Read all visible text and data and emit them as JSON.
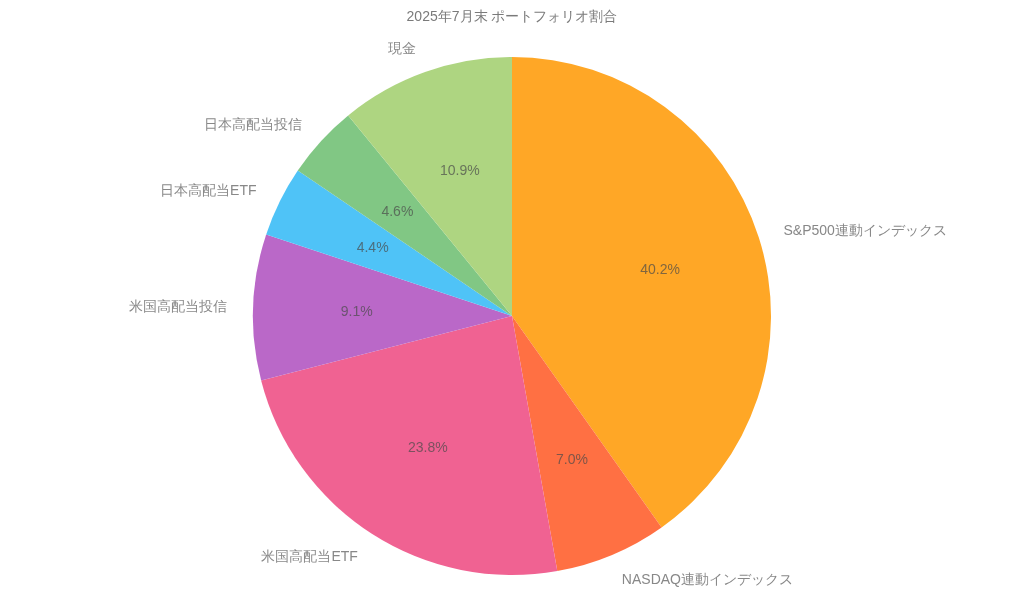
{
  "chart_data": {
    "type": "pie",
    "title": "2025年7月末 ポートフォリオ割合",
    "categories": [
      "S&P500連動インデックス",
      "NASDAQ連動インデックス",
      "米国高配当ETF",
      "米国高配当投信",
      "日本高配当ETF",
      "日本高配当投信",
      "現金"
    ],
    "values": [
      40.2,
      7.0,
      23.8,
      9.1,
      4.4,
      4.6,
      10.9
    ],
    "value_labels": [
      "40.2%",
      "7.0%",
      "23.8%",
      "9.1%",
      "4.4%",
      "4.6%",
      "10.9%"
    ],
    "colors": [
      "#ffa726",
      "#ff7043",
      "#f06292",
      "#ba68c8",
      "#4fc3f7",
      "#81c784",
      "#aed581"
    ]
  }
}
